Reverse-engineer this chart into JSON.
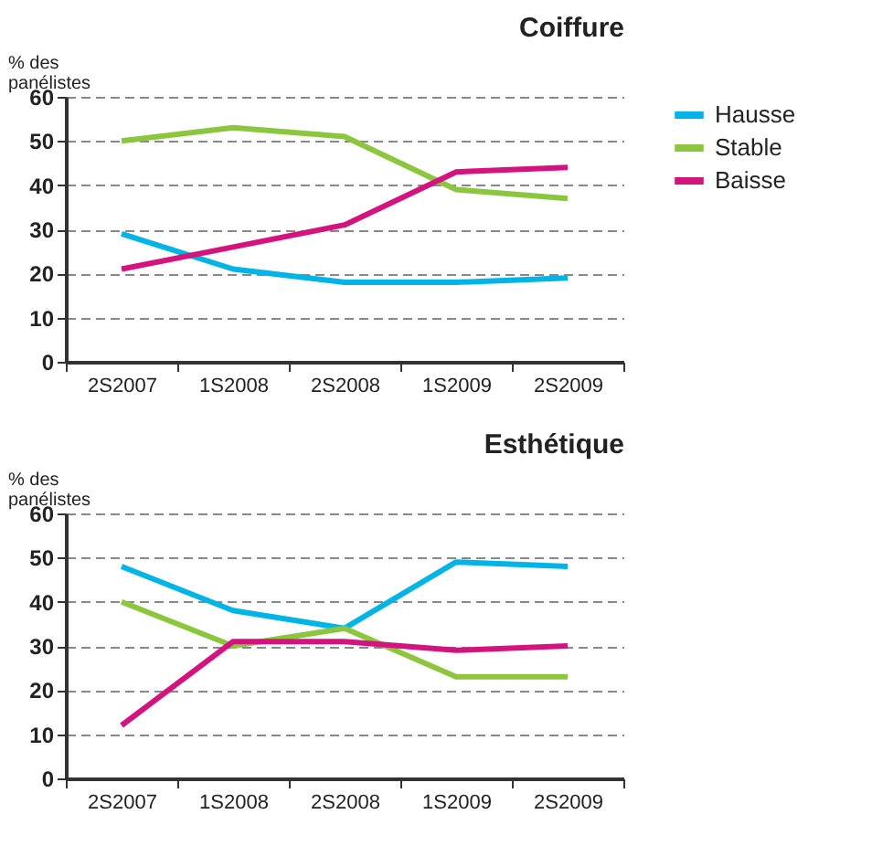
{
  "chart_data": [
    {
      "type": "line",
      "title": "Coiffure",
      "ylabel": "% des panélistes",
      "categories": [
        "2S2007",
        "1S2008",
        "2S2008",
        "1S2009",
        "2S2009"
      ],
      "series": [
        {
          "name": "Hausse",
          "color": "#00b4e6",
          "values": [
            29,
            21,
            18,
            18,
            19
          ]
        },
        {
          "name": "Stable",
          "color": "#8cc63f",
          "values": [
            50,
            53,
            51,
            39,
            37
          ]
        },
        {
          "name": "Baisse",
          "color": "#d4137f",
          "values": [
            21,
            26,
            31,
            43,
            44
          ]
        }
      ],
      "ylim": [
        0,
        60
      ],
      "yticks": [
        0,
        10,
        20,
        30,
        40,
        50,
        60
      ],
      "grid": "y",
      "legend": "top right",
      "line_style": "solid",
      "marker": "none"
    },
    {
      "type": "line",
      "title": "Esthétique",
      "ylabel": "% des panélistes",
      "categories": [
        "2S2007",
        "1S2008",
        "2S2008",
        "1S2009",
        "2S2009"
      ],
      "series": [
        {
          "name": "Hausse",
          "color": "#00b4e6",
          "values": [
            48,
            38,
            34,
            49,
            48
          ]
        },
        {
          "name": "Stable",
          "color": "#8cc63f",
          "values": [
            40,
            30,
            34,
            23,
            23
          ]
        },
        {
          "name": "Baisse",
          "color": "#d4137f",
          "values": [
            12,
            31,
            31,
            29,
            30
          ]
        }
      ],
      "ylim": [
        0,
        60
      ],
      "yticks": [
        0,
        10,
        20,
        30,
        40,
        50,
        60
      ],
      "grid": "y",
      "legend": "top right",
      "line_style": "solid",
      "marker": "none"
    }
  ]
}
